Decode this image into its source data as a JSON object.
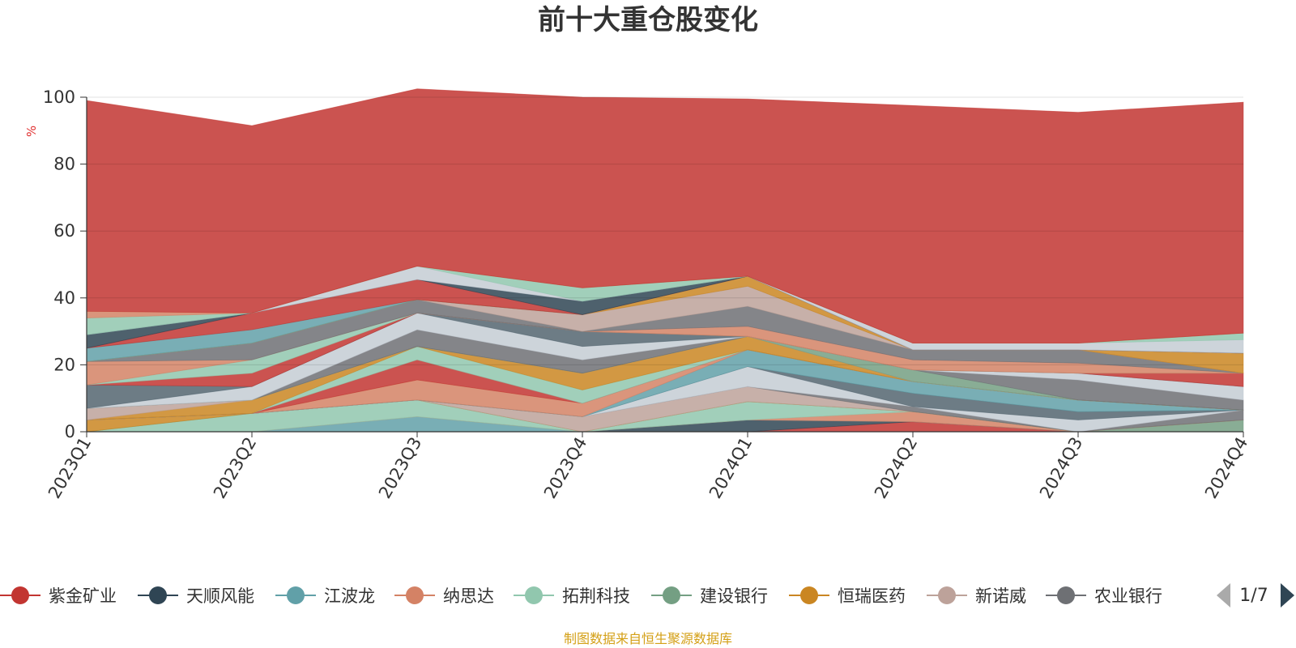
{
  "chart_data": {
    "type": "area",
    "stacked": true,
    "title": "前十大重仓股变化",
    "y_unit": "%",
    "ylim": [
      0,
      100
    ],
    "y_ticks": [
      0,
      20,
      40,
      60,
      80,
      100
    ],
    "grid": true,
    "categories": [
      "2023Q1",
      "2023Q2",
      "2023Q3",
      "2023Q4",
      "2024Q1",
      "2024Q2",
      "2024Q3",
      "2024Q4"
    ],
    "series": [
      {
        "name": "紫金矿业",
        "color": "#c23531",
        "values": [
          0,
          0,
          0,
          0,
          0,
          3,
          0,
          0
        ]
      },
      {
        "name": "天顺风能",
        "color": "#2f4554",
        "values": [
          0,
          0,
          0,
          0,
          3.5,
          0,
          0,
          0
        ]
      },
      {
        "name": "江波龙",
        "color": "#61a0a8",
        "values": [
          0,
          0,
          4.5,
          0,
          0,
          0,
          0,
          0
        ]
      },
      {
        "name": "纳思达",
        "color": "#d48265",
        "values": [
          0,
          0,
          0,
          0,
          0,
          3,
          0,
          0
        ]
      },
      {
        "name": "拓荆科技",
        "color": "#91c7ae",
        "values": [
          0,
          5.5,
          5,
          0,
          5.5,
          0,
          0,
          0
        ]
      },
      {
        "name": "建设银行",
        "color": "#749f83",
        "values": [
          0,
          0,
          0,
          0,
          0,
          0,
          0,
          3.5
        ]
      },
      {
        "name": "恒瑞医药",
        "color": "#ca8622",
        "values": [
          3.5,
          0,
          0,
          0,
          0,
          0,
          0,
          0
        ]
      },
      {
        "name": "新诺威",
        "color": "#bda29a",
        "values": [
          0,
          0,
          0,
          4.5,
          4.5,
          0,
          0,
          0
        ]
      },
      {
        "name": "农业银行",
        "color": "#6e7074",
        "values": [
          0,
          0,
          0,
          0,
          0,
          1.5,
          0,
          3.0
        ]
      },
      {
        "name": "",
        "color": "#c4ccd3",
        "values": [
          0,
          0,
          0,
          0,
          6,
          0,
          3.5,
          0
        ]
      },
      {
        "name": "",
        "color": "#546570",
        "values": [
          0,
          0,
          0,
          0,
          0,
          4,
          2.5,
          0
        ]
      },
      {
        "name": "",
        "color": "#61a0a8",
        "values": [
          0,
          0,
          0,
          0,
          5,
          3.5,
          3.5,
          0
        ]
      },
      {
        "name": "",
        "color": "#d48265",
        "values": [
          0,
          0,
          6,
          4,
          0,
          0,
          0,
          0
        ]
      },
      {
        "name": "",
        "color": "#c23531",
        "values": [
          0,
          0,
          6,
          0,
          0,
          0,
          0,
          0
        ]
      },
      {
        "name": "",
        "color": "#91c7ae",
        "values": [
          0,
          0,
          4,
          4,
          0,
          0,
          0,
          0
        ]
      },
      {
        "name": "",
        "color": "#ca8622",
        "values": [
          0,
          4,
          0,
          5,
          4,
          0,
          0,
          0
        ]
      },
      {
        "name": "",
        "color": "#bda29a",
        "values": [
          3.5,
          0,
          0,
          0,
          0,
          0,
          0,
          0
        ]
      },
      {
        "name": "",
        "color": "#749f83",
        "values": [
          0,
          0,
          0,
          0,
          0,
          3.5,
          0,
          0
        ]
      },
      {
        "name": "",
        "color": "#6e7074",
        "values": [
          0,
          0,
          5,
          4,
          0,
          0,
          6,
          3.0
        ]
      },
      {
        "name": "",
        "color": "#c4ccd3",
        "values": [
          0,
          4,
          5,
          4,
          0,
          0,
          2,
          4
        ]
      },
      {
        "name": "",
        "color": "#546570",
        "values": [
          7,
          0,
          0,
          4.5,
          0,
          0,
          0,
          0
        ]
      },
      {
        "name": "",
        "color": "#c23531",
        "values": [
          0,
          4,
          0,
          0,
          0,
          0,
          0,
          4
        ]
      },
      {
        "name": "",
        "color": "#91c7ae",
        "values": [
          0,
          4,
          0,
          0,
          0,
          0,
          0,
          0
        ]
      },
      {
        "name": "",
        "color": "#d48265",
        "values": [
          7,
          0,
          0,
          0,
          3,
          3,
          3,
          0
        ]
      },
      {
        "name": "",
        "color": "#6e7074",
        "values": [
          0,
          5,
          4,
          0,
          6,
          3,
          4,
          0
        ]
      },
      {
        "name": "",
        "color": "#bda29a",
        "values": [
          0,
          0,
          0,
          5,
          6,
          0,
          0,
          0
        ]
      },
      {
        "name": "",
        "color": "#ca8622",
        "values": [
          0,
          0,
          0,
          0,
          3,
          0,
          0,
          6
        ]
      },
      {
        "name": "",
        "color": "#61a0a8",
        "values": [
          4,
          4,
          0,
          0,
          0,
          0,
          0,
          0
        ]
      },
      {
        "name": "",
        "color": "#c23531",
        "values": [
          0,
          5,
          6,
          0,
          0,
          0,
          0,
          0
        ]
      },
      {
        "name": "",
        "color": "#2f4554",
        "values": [
          4,
          0,
          0,
          4,
          0,
          0,
          0,
          0
        ]
      },
      {
        "name": "",
        "color": "#c4ccd3",
        "values": [
          0,
          0,
          4,
          0,
          0,
          2,
          2,
          4
        ]
      },
      {
        "name": "",
        "color": "#91c7ae",
        "values": [
          5,
          0,
          0,
          4,
          0,
          0,
          0,
          2
        ]
      },
      {
        "name": "",
        "color": "#d48265",
        "values": [
          2,
          0,
          0,
          0,
          0,
          0,
          0,
          0
        ]
      },
      {
        "name": "",
        "color": "#c23531",
        "values": [
          63,
          56,
          53,
          57,
          53,
          71,
          69,
          69
        ]
      }
    ],
    "legend_position": "bottom",
    "legend_page": "1/7"
  },
  "source_note": "制图数据来自恒生聚源数据库"
}
